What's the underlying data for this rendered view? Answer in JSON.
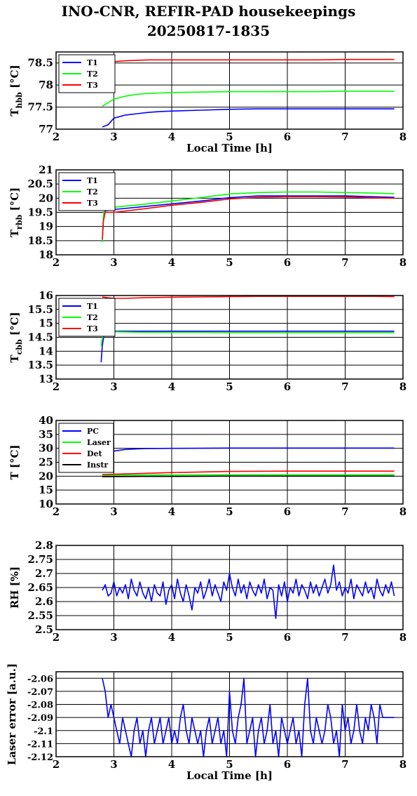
{
  "title": [
    "INO-CNR, REFIR-PAD housekeepings",
    "20250817-1835"
  ],
  "chart_data": [
    {
      "type": "line",
      "ylabel": "T",
      "ylabel_sub": "hbb",
      "ylabel_unit": "[°C]",
      "xlabel": "Local Time [h]",
      "xlim": [
        2,
        8
      ],
      "ylim": [
        77,
        78.75
      ],
      "xticks": [
        "2",
        "3",
        "4",
        "5",
        "6",
        "7",
        "8"
      ],
      "yticks": [
        "77",
        "77.5",
        "78",
        "78.5"
      ],
      "ytick_values": [
        77,
        77.5,
        78,
        78.5
      ],
      "grid": true,
      "legend_placement": "top-left",
      "series": [
        {
          "name": "T1",
          "color": "#0000ff",
          "x": [
            2.8,
            2.9,
            3.0,
            3.2,
            3.4,
            3.6,
            3.8,
            4.0,
            4.5,
            5.0,
            5.5,
            6.0,
            6.5,
            7.0,
            7.5,
            7.85
          ],
          "y": [
            77.05,
            77.1,
            77.25,
            77.32,
            77.35,
            77.38,
            77.4,
            77.41,
            77.43,
            77.45,
            77.46,
            77.46,
            77.46,
            77.46,
            77.46,
            77.46
          ]
        },
        {
          "name": "T2",
          "color": "#00ff00",
          "x": [
            2.8,
            2.9,
            3.0,
            3.2,
            3.4,
            3.6,
            3.8,
            4.0,
            4.5,
            5.0,
            5.5,
            6.0,
            6.5,
            7.0,
            7.5,
            7.85
          ],
          "y": [
            77.52,
            77.6,
            77.68,
            77.75,
            77.79,
            77.81,
            77.82,
            77.83,
            77.84,
            77.85,
            77.85,
            77.85,
            77.85,
            77.86,
            77.86,
            77.86
          ]
        },
        {
          "name": "T3",
          "color": "#ff0000",
          "x": [
            2.8,
            2.9,
            3.0,
            3.2,
            3.4,
            3.6,
            3.8,
            4.0,
            4.5,
            5.0,
            5.5,
            6.0,
            6.5,
            7.0,
            7.5,
            7.85
          ],
          "y": [
            78.47,
            78.5,
            78.53,
            78.55,
            78.56,
            78.57,
            78.57,
            78.57,
            78.57,
            78.57,
            78.57,
            78.57,
            78.57,
            78.58,
            78.58,
            78.58
          ]
        }
      ]
    },
    {
      "type": "line",
      "ylabel": "T",
      "ylabel_sub": "rbb",
      "ylabel_unit": "[°C]",
      "xlabel": "",
      "xlim": [
        2,
        8
      ],
      "ylim": [
        18,
        21
      ],
      "xticks": [
        "2",
        "3",
        "4",
        "5",
        "6",
        "7",
        "8"
      ],
      "yticks": [
        "18",
        "18.5",
        "19",
        "19.5",
        "20",
        "20.5",
        "21"
      ],
      "ytick_values": [
        18,
        18.5,
        19,
        19.5,
        20,
        20.5,
        21
      ],
      "grid": true,
      "legend_placement": "top-left",
      "series": [
        {
          "name": "T1",
          "color": "#0000ff",
          "x": [
            2.8,
            2.82,
            2.85,
            3.0,
            3.5,
            4.0,
            4.5,
            5.0,
            5.5,
            6.0,
            6.5,
            7.0,
            7.5,
            7.85
          ],
          "y": [
            18.5,
            19.3,
            19.55,
            19.6,
            19.7,
            19.8,
            19.9,
            20.02,
            20.08,
            20.08,
            20.08,
            20.08,
            20.05,
            20.03
          ]
        },
        {
          "name": "T2",
          "color": "#00ff00",
          "x": [
            2.8,
            2.82,
            2.85,
            3.0,
            3.5,
            4.0,
            4.5,
            5.0,
            5.5,
            6.0,
            6.5,
            7.0,
            7.5,
            7.85
          ],
          "y": [
            18.45,
            19.4,
            19.65,
            19.68,
            19.78,
            19.9,
            20.02,
            20.15,
            20.2,
            20.22,
            20.22,
            20.2,
            20.18,
            20.16
          ]
        },
        {
          "name": "T3",
          "color": "#ff0000",
          "x": [
            2.8,
            2.82,
            2.85,
            3.0,
            3.5,
            4.0,
            4.5,
            5.0,
            5.5,
            6.0,
            6.5,
            7.0,
            7.5,
            7.85
          ],
          "y": [
            18.55,
            19.2,
            19.5,
            19.5,
            19.62,
            19.75,
            19.85,
            19.97,
            20.03,
            20.05,
            20.05,
            20.04,
            20.01,
            20.0
          ]
        }
      ]
    },
    {
      "type": "line",
      "ylabel": "T",
      "ylabel_sub": "cbb",
      "ylabel_unit": "[°C]",
      "xlabel": "",
      "xlim": [
        2,
        8
      ],
      "ylim": [
        13,
        16
      ],
      "xticks": [
        "2",
        "3",
        "4",
        "5",
        "6",
        "7",
        "8"
      ],
      "yticks": [
        "13",
        "13.5",
        "14",
        "14.5",
        "15",
        "15.5",
        "16"
      ],
      "ytick_values": [
        13,
        13.5,
        14,
        14.5,
        15,
        15.5,
        16
      ],
      "grid": true,
      "legend_placement": "top-left",
      "series": [
        {
          "name": "T1",
          "color": "#0000ff",
          "x": [
            2.78,
            2.8,
            2.83,
            2.86,
            3.0,
            3.5,
            4.0,
            4.5,
            5.0,
            5.5,
            6.0,
            6.5,
            7.0,
            7.5,
            7.85
          ],
          "y": [
            13.6,
            14.2,
            14.6,
            14.72,
            14.72,
            14.72,
            14.72,
            14.72,
            14.72,
            14.72,
            14.72,
            14.72,
            14.72,
            14.72,
            14.72
          ]
        },
        {
          "name": "T2",
          "color": "#00ff00",
          "x": [
            2.78,
            2.8,
            2.83,
            2.86,
            3.0,
            3.5,
            4.0,
            4.5,
            5.0,
            5.5,
            6.0,
            6.5,
            7.0,
            7.5,
            7.85
          ],
          "y": [
            14.2,
            14.45,
            14.65,
            14.7,
            14.7,
            14.68,
            14.68,
            14.68,
            14.67,
            14.67,
            14.67,
            14.67,
            14.67,
            14.67,
            14.67
          ]
        },
        {
          "name": "T3",
          "color": "#ff0000",
          "x": [
            2.8,
            2.9,
            3.0,
            3.2,
            3.5,
            4.0,
            4.5,
            5.0,
            5.5,
            6.0,
            6.5,
            7.0,
            7.5,
            7.85
          ],
          "y": [
            15.95,
            15.92,
            15.9,
            15.9,
            15.92,
            15.94,
            15.95,
            15.96,
            15.97,
            15.97,
            15.97,
            15.97,
            15.97,
            15.96
          ]
        }
      ]
    },
    {
      "type": "line",
      "ylabel": "T",
      "ylabel_sub": "",
      "ylabel_unit": "[°C]",
      "xlabel": "",
      "xlim": [
        2,
        8
      ],
      "ylim": [
        10,
        40
      ],
      "xticks": [
        "2",
        "3",
        "4",
        "5",
        "6",
        "7",
        "8"
      ],
      "yticks": [
        "10",
        "15",
        "20",
        "25",
        "30",
        "35",
        "40"
      ],
      "ytick_values": [
        10,
        15,
        20,
        25,
        30,
        35,
        40
      ],
      "grid": true,
      "legend_placement": "top-left",
      "series": [
        {
          "name": "PC",
          "color": "#0000ff",
          "x": [
            2.8,
            3.0,
            3.2,
            3.5,
            4.0,
            5.0,
            6.0,
            7.0,
            7.85
          ],
          "y": [
            28.5,
            29.0,
            29.6,
            29.9,
            30.0,
            30.1,
            30.1,
            30.1,
            30.1
          ]
        },
        {
          "name": "Laser",
          "color": "#00ff00",
          "x": [
            2.8,
            3.5,
            4.0,
            5.0,
            6.0,
            7.0,
            7.85
          ],
          "y": [
            20.3,
            20.4,
            20.4,
            20.5,
            20.5,
            20.5,
            20.5
          ]
        },
        {
          "name": "Det",
          "color": "#ff0000",
          "x": [
            2.8,
            3.0,
            3.5,
            4.0,
            4.5,
            5.0,
            6.0,
            7.0,
            7.85
          ],
          "y": [
            20.6,
            20.7,
            21.0,
            21.3,
            21.5,
            21.7,
            21.8,
            21.8,
            21.8
          ]
        },
        {
          "name": "Instr",
          "color": "#000000",
          "x": [
            2.8,
            3.5,
            4.0,
            5.0,
            6.0,
            7.0,
            7.85
          ],
          "y": [
            19.8,
            19.9,
            19.9,
            20.0,
            20.0,
            20.0,
            20.0
          ]
        }
      ]
    },
    {
      "type": "line",
      "ylabel": "RH [%]",
      "ylabel_sub": "",
      "ylabel_unit": "",
      "xlabel": "",
      "xlim": [
        2,
        8
      ],
      "ylim": [
        2.5,
        2.8
      ],
      "xticks": [
        "2",
        "3",
        "4",
        "5",
        "6",
        "7",
        "8"
      ],
      "yticks": [
        "2.5",
        "2.55",
        "2.6",
        "2.65",
        "2.7",
        "2.75",
        "2.8"
      ],
      "ytick_values": [
        2.5,
        2.55,
        2.6,
        2.65,
        2.7,
        2.75,
        2.8
      ],
      "grid": true,
      "legend_placement": "none",
      "series": [
        {
          "name": "",
          "color": "#0000ff",
          "x": [
            2.8,
            2.85,
            2.9,
            2.95,
            3.0,
            3.05,
            3.1,
            3.15,
            3.2,
            3.25,
            3.3,
            3.35,
            3.4,
            3.45,
            3.5,
            3.55,
            3.6,
            3.65,
            3.7,
            3.75,
            3.8,
            3.85,
            3.9,
            3.95,
            4.0,
            4.05,
            4.1,
            4.15,
            4.2,
            4.25,
            4.3,
            4.35,
            4.4,
            4.45,
            4.5,
            4.55,
            4.6,
            4.65,
            4.7,
            4.75,
            4.8,
            4.85,
            4.9,
            4.95,
            5.0,
            5.05,
            5.1,
            5.15,
            5.2,
            5.25,
            5.3,
            5.35,
            5.4,
            5.45,
            5.5,
            5.55,
            5.6,
            5.65,
            5.7,
            5.75,
            5.8,
            5.85,
            5.9,
            5.95,
            6.0,
            6.05,
            6.1,
            6.15,
            6.2,
            6.25,
            6.3,
            6.35,
            6.4,
            6.45,
            6.5,
            6.55,
            6.6,
            6.65,
            6.7,
            6.75,
            6.8,
            6.85,
            6.9,
            6.95,
            7.0,
            7.05,
            7.1,
            7.15,
            7.2,
            7.25,
            7.3,
            7.35,
            7.4,
            7.45,
            7.5,
            7.55,
            7.6,
            7.65,
            7.7,
            7.75,
            7.8,
            7.85
          ],
          "y": [
            2.64,
            2.66,
            2.62,
            2.63,
            2.67,
            2.62,
            2.65,
            2.63,
            2.66,
            2.61,
            2.68,
            2.64,
            2.62,
            2.67,
            2.63,
            2.61,
            2.65,
            2.6,
            2.66,
            2.63,
            2.62,
            2.67,
            2.59,
            2.64,
            2.66,
            2.61,
            2.68,
            2.63,
            2.6,
            2.66,
            2.62,
            2.57,
            2.65,
            2.63,
            2.67,
            2.61,
            2.64,
            2.68,
            2.62,
            2.66,
            2.63,
            2.6,
            2.67,
            2.64,
            2.7,
            2.65,
            2.62,
            2.68,
            2.63,
            2.66,
            2.61,
            2.67,
            2.64,
            2.62,
            2.66,
            2.63,
            2.68,
            2.61,
            2.65,
            2.64,
            2.54,
            2.66,
            2.62,
            2.67,
            2.6,
            2.65,
            2.63,
            2.68,
            2.62,
            2.66,
            2.64,
            2.61,
            2.67,
            2.63,
            2.66,
            2.62,
            2.65,
            2.68,
            2.63,
            2.66,
            2.73,
            2.64,
            2.67,
            2.62,
            2.65,
            2.63,
            2.68,
            2.61,
            2.66,
            2.64,
            2.62,
            2.67,
            2.63,
            2.65,
            2.61,
            2.68,
            2.64,
            2.62,
            2.66,
            2.63,
            2.67,
            2.62
          ]
        }
      ]
    },
    {
      "type": "line",
      "ylabel": "Laser error [a.u.]",
      "ylabel_sub": "",
      "ylabel_unit": "",
      "xlabel": "Local Time [h]",
      "xlim": [
        2,
        8
      ],
      "ylim": [
        -2.12,
        -2.055
      ],
      "xticks": [
        "2",
        "3",
        "4",
        "5",
        "6",
        "7",
        "8"
      ],
      "yticks": [
        "-2.12",
        "-2.11",
        "-2.1",
        "-2.09",
        "-2.08",
        "-2.07",
        "-2.06"
      ],
      "ytick_values": [
        -2.12,
        -2.11,
        -2.1,
        -2.09,
        -2.08,
        -2.07,
        -2.06
      ],
      "grid": true,
      "legend_placement": "none",
      "series": [
        {
          "name": "",
          "color": "#0000ff",
          "x": [
            2.8,
            2.85,
            2.9,
            2.95,
            3.0,
            3.05,
            3.1,
            3.15,
            3.2,
            3.25,
            3.3,
            3.35,
            3.4,
            3.45,
            3.5,
            3.55,
            3.6,
            3.65,
            3.7,
            3.75,
            3.8,
            3.85,
            3.9,
            3.95,
            4.0,
            4.05,
            4.1,
            4.15,
            4.2,
            4.25,
            4.3,
            4.35,
            4.4,
            4.45,
            4.5,
            4.55,
            4.6,
            4.65,
            4.7,
            4.75,
            4.8,
            4.85,
            4.9,
            4.95,
            5.0,
            5.05,
            5.1,
            5.15,
            5.2,
            5.25,
            5.3,
            5.35,
            5.4,
            5.45,
            5.5,
            5.55,
            5.6,
            5.65,
            5.7,
            5.75,
            5.8,
            5.85,
            5.9,
            5.95,
            6.0,
            6.05,
            6.1,
            6.15,
            6.2,
            6.25,
            6.3,
            6.35,
            6.4,
            6.45,
            6.5,
            6.55,
            6.6,
            6.65,
            6.7,
            6.75,
            6.8,
            6.85,
            6.9,
            6.95,
            7.0,
            7.05,
            7.1,
            7.15,
            7.2,
            7.25,
            7.3,
            7.35,
            7.4,
            7.45,
            7.5,
            7.55,
            7.6,
            7.65,
            7.7,
            7.75,
            7.8,
            7.85
          ],
          "y": [
            -2.06,
            -2.07,
            -2.09,
            -2.08,
            -2.09,
            -2.1,
            -2.11,
            -2.09,
            -2.1,
            -2.11,
            -2.12,
            -2.1,
            -2.09,
            -2.11,
            -2.1,
            -2.12,
            -2.1,
            -2.09,
            -2.11,
            -2.1,
            -2.09,
            -2.11,
            -2.1,
            -2.09,
            -2.11,
            -2.1,
            -2.11,
            -2.09,
            -2.08,
            -2.1,
            -2.11,
            -2.09,
            -2.1,
            -2.11,
            -2.1,
            -2.12,
            -2.1,
            -2.09,
            -2.11,
            -2.1,
            -2.09,
            -2.11,
            -2.1,
            -2.12,
            -2.07,
            -2.1,
            -2.11,
            -2.09,
            -2.08,
            -2.06,
            -2.11,
            -2.1,
            -2.09,
            -2.12,
            -2.1,
            -2.09,
            -2.11,
            -2.1,
            -2.08,
            -2.11,
            -2.1,
            -2.12,
            -2.09,
            -2.1,
            -2.11,
            -2.1,
            -2.09,
            -2.11,
            -2.1,
            -2.12,
            -2.08,
            -2.06,
            -2.1,
            -2.11,
            -2.09,
            -2.1,
            -2.11,
            -2.1,
            -2.08,
            -2.09,
            -2.11,
            -2.1,
            -2.12,
            -2.08,
            -2.1,
            -2.09,
            -2.11,
            -2.1,
            -2.08,
            -2.1,
            -2.11,
            -2.09,
            -2.1,
            -2.08,
            -2.09,
            -2.11,
            -2.08,
            -2.09,
            -2.09,
            -2.09,
            -2.09,
            -2.09
          ]
        }
      ]
    }
  ]
}
